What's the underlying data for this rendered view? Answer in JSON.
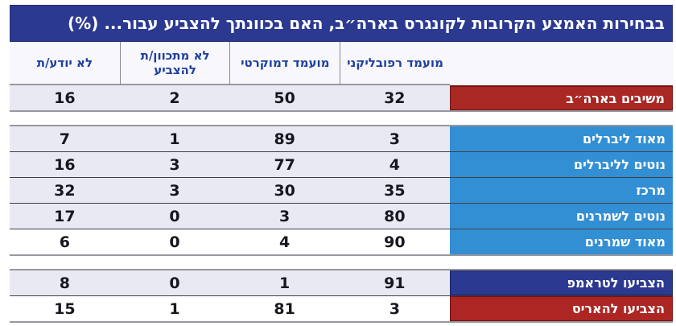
{
  "chart_data": {
    "type": "table",
    "title": "בבחירות האמצע הקרובות לקונגרס בארה״ב, האם בכוונתך להצביע עבור... (%)",
    "columns": [
      "מועמד רפובליקני",
      "מועמד דמוקרטי",
      "לא מתכוון/ת להצביע",
      "לא יודע/ת"
    ],
    "column_keys": [
      "republican-candidate",
      "democratic-candidate",
      "not-intending-to-vote",
      "dont-know"
    ],
    "groups": [
      [
        {
          "label": "משיבים בארה״ב",
          "label_color": "#a92824",
          "label_border": "#6f1512",
          "bg": "#e9e9f4",
          "values": [
            32,
            50,
            2,
            16
          ]
        }
      ],
      [
        {
          "label": "מאוד ליברלים",
          "label_color": "#338fd4",
          "bg": "#e9e9f4",
          "values": [
            3,
            89,
            1,
            7
          ]
        },
        {
          "label": "נוטים לליברלים",
          "label_color": "#338fd4",
          "bg": "#e9e9f4",
          "values": [
            4,
            77,
            3,
            16
          ]
        },
        {
          "label": "מרכז",
          "label_color": "#338fd4",
          "bg": "#e9e9f4",
          "values": [
            35,
            30,
            3,
            32
          ]
        },
        {
          "label": "נוטים לשמרנים",
          "label_color": "#338fd4",
          "bg": "#e9e9f4",
          "values": [
            80,
            3,
            0,
            17
          ]
        },
        {
          "label": "מאוד שמרנים",
          "label_color": "#338fd4",
          "bg": "#ffffff",
          "values": [
            90,
            4,
            0,
            6
          ]
        }
      ],
      [
        {
          "label": "הצביעו לטראמפ",
          "label_color": "#2b3990",
          "label_border": "#1c2560",
          "bg": "#e9e9f4",
          "values": [
            91,
            1,
            0,
            8
          ]
        },
        {
          "label": "הצביעו להאריס",
          "label_color": "#ad2623",
          "label_border": "#6f1512",
          "bg": "#ffffff",
          "values": [
            3,
            81,
            1,
            15
          ]
        }
      ]
    ],
    "layout": {
      "legend": "none",
      "grid": "row-separators",
      "direction": "rtl"
    }
  },
  "colors": {
    "title_bar": "#2b3990",
    "header_text": "#1e3f9d",
    "row_alt": "#e9e9f4",
    "red_label": "#a92824",
    "blue_label": "#338fd4",
    "navy_label": "#2b3990",
    "separator": "#3f3f47",
    "block_line": "#97979e"
  }
}
